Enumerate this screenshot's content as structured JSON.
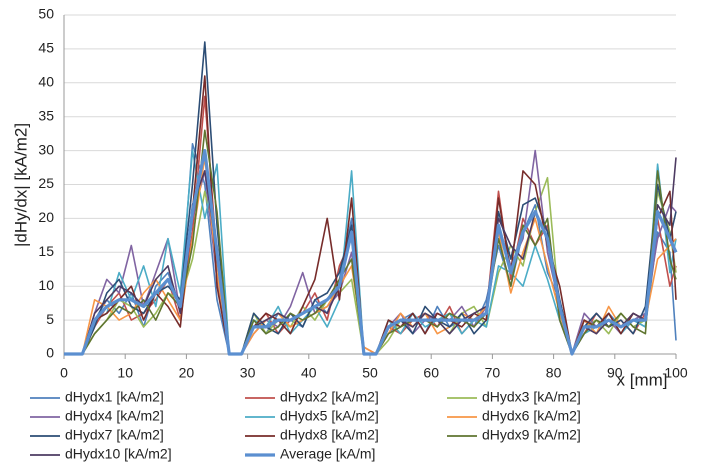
{
  "chart_data": {
    "type": "line",
    "x_label": "x [mm]",
    "y_label": "|dHy/dx|  [kA/m2]",
    "x": [
      0,
      1,
      3,
      5,
      7,
      9,
      11,
      13,
      15,
      17,
      19,
      21,
      23,
      25,
      27,
      29,
      31,
      33,
      35,
      37,
      39,
      41,
      43,
      45,
      47,
      49,
      51,
      53,
      55,
      57,
      59,
      61,
      63,
      65,
      67,
      69,
      71,
      73,
      75,
      77,
      79,
      81,
      83,
      85,
      87,
      89,
      91,
      93,
      95,
      97,
      99,
      100
    ],
    "xlim": [
      0,
      100
    ],
    "xticks": [
      0,
      10,
      20,
      30,
      40,
      50,
      60,
      70,
      80,
      90,
      100
    ],
    "ylim": [
      0,
      50
    ],
    "yticks": [
      0,
      5,
      10,
      15,
      20,
      25,
      30,
      35,
      40,
      45,
      50
    ],
    "grid": true,
    "legend": "bottom",
    "series": [
      {
        "name": "dHydx1 [kA/m2]",
        "color": "#4f81bd",
        "values": [
          0,
          0,
          0,
          5,
          8,
          6,
          9,
          4,
          10,
          12,
          7,
          31,
          25,
          8,
          0,
          0,
          5,
          3,
          6,
          5,
          4,
          8,
          6,
          11,
          20,
          0,
          0,
          3,
          5,
          6,
          3,
          7,
          4,
          5,
          4,
          8,
          16,
          10,
          18,
          22,
          12,
          8,
          0,
          5,
          3,
          6,
          4,
          5,
          4,
          18,
          15,
          2
        ]
      },
      {
        "name": "dHydx2 [kA/m2]",
        "color": "#c0504d",
        "values": [
          0,
          0,
          0,
          4,
          7,
          9,
          5,
          6,
          8,
          11,
          5,
          18,
          38,
          14,
          0,
          0,
          4,
          6,
          3,
          5,
          6,
          9,
          5,
          13,
          17,
          1,
          0,
          4,
          3,
          5,
          6,
          4,
          7,
          3,
          5,
          6,
          24,
          11,
          20,
          16,
          19,
          5,
          0,
          3,
          6,
          4,
          5,
          3,
          6,
          20,
          10,
          13
        ]
      },
      {
        "name": "dHydx3 [kA/m2]",
        "color": "#9bbb59",
        "values": [
          0,
          0,
          0,
          3,
          5,
          8,
          7,
          4,
          6,
          9,
          8,
          14,
          24,
          16,
          0,
          0,
          6,
          3,
          5,
          4,
          7,
          5,
          8,
          9,
          11,
          0,
          0,
          2,
          5,
          4,
          6,
          5,
          3,
          6,
          7,
          4,
          12,
          16,
          13,
          21,
          26,
          6,
          0,
          4,
          5,
          3,
          6,
          4,
          5,
          24,
          18,
          12
        ]
      },
      {
        "name": "dHydx4 [kA/m2]",
        "color": "#8064a2",
        "values": [
          0,
          0,
          0,
          6,
          11,
          9,
          16,
          7,
          12,
          17,
          6,
          20,
          27,
          11,
          0,
          0,
          3,
          5,
          4,
          7,
          12,
          6,
          7,
          9,
          15,
          0,
          0,
          4,
          6,
          3,
          5,
          6,
          5,
          7,
          4,
          7,
          19,
          13,
          17,
          30,
          15,
          7,
          0,
          6,
          4,
          5,
          3,
          5,
          6,
          17,
          22,
          21
        ]
      },
      {
        "name": "dHydx5 [kA/m2]",
        "color": "#4bacc6",
        "values": [
          0,
          0,
          0,
          5,
          6,
          12,
          8,
          13,
          7,
          17,
          9,
          30,
          20,
          28,
          0,
          0,
          5,
          4,
          7,
          3,
          5,
          7,
          4,
          8,
          27,
          0,
          0,
          5,
          3,
          6,
          4,
          5,
          6,
          3,
          5,
          4,
          13,
          12,
          10,
          16,
          11,
          5,
          0,
          3,
          4,
          6,
          3,
          5,
          4,
          28,
          12,
          17
        ]
      },
      {
        "name": "dHydx6 [kA/m2]",
        "color": "#f79646",
        "values": [
          0,
          0,
          0,
          8,
          7,
          5,
          6,
          9,
          11,
          8,
          5,
          17,
          29,
          12,
          0,
          0,
          3,
          5,
          6,
          4,
          5,
          6,
          7,
          10,
          13,
          1,
          0,
          3,
          6,
          4,
          6,
          3,
          4,
          6,
          5,
          7,
          18,
          9,
          15,
          20,
          13,
          6,
          0,
          5,
          3,
          7,
          4,
          6,
          5,
          14,
          16,
          17
        ]
      },
      {
        "name": "dHydx7 [kA/m2]",
        "color": "#2c4d75",
        "values": [
          0,
          0,
          0,
          4,
          9,
          11,
          7,
          6,
          9,
          10,
          8,
          25,
          46,
          19,
          0,
          0,
          6,
          4,
          3,
          6,
          4,
          8,
          9,
          12,
          19,
          0,
          0,
          4,
          5,
          3,
          7,
          5,
          4,
          6,
          3,
          5,
          21,
          14,
          22,
          23,
          18,
          8,
          0,
          4,
          6,
          4,
          5,
          3,
          7,
          25,
          17,
          21
        ]
      },
      {
        "name": "dHydx8 [kA/m2]",
        "color": "#772c2a",
        "values": [
          0,
          0,
          0,
          5,
          6,
          8,
          10,
          5,
          9,
          7,
          4,
          21,
          41,
          10,
          0,
          0,
          4,
          6,
          5,
          3,
          7,
          11,
          20,
          8,
          23,
          0,
          0,
          5,
          4,
          6,
          3,
          6,
          5,
          4,
          6,
          5,
          23,
          12,
          27,
          25,
          16,
          10,
          0,
          5,
          4,
          6,
          3,
          6,
          5,
          20,
          24,
          8
        ]
      },
      {
        "name": "dHydx9 [kA/m2]",
        "color": "#5f7530",
        "values": [
          0,
          0,
          0,
          3,
          5,
          7,
          6,
          8,
          5,
          9,
          7,
          16,
          33,
          21,
          0,
          0,
          5,
          3,
          4,
          6,
          5,
          6,
          8,
          11,
          14,
          0,
          0,
          3,
          4,
          5,
          5,
          4,
          6,
          5,
          4,
          6,
          17,
          10,
          19,
          16,
          20,
          5,
          0,
          3,
          5,
          4,
          6,
          4,
          3,
          27,
          14,
          11
        ]
      },
      {
        "name": "dHydx10 [kA/m2]",
        "color": "#4d3b62",
        "values": [
          0,
          0,
          0,
          6,
          8,
          10,
          9,
          7,
          11,
          13,
          6,
          22,
          27,
          15,
          0,
          0,
          4,
          5,
          6,
          5,
          6,
          7,
          6,
          10,
          18,
          0,
          0,
          4,
          5,
          4,
          6,
          5,
          3,
          5,
          6,
          7,
          20,
          16,
          14,
          21,
          17,
          7,
          0,
          4,
          3,
          5,
          4,
          6,
          5,
          22,
          19,
          29
        ]
      },
      {
        "name": "Average [kA/m]",
        "color": "#5b8fd0",
        "values": [
          0,
          0,
          0,
          5,
          7,
          8,
          8,
          7,
          9,
          11,
          7,
          21,
          30,
          15,
          0,
          0,
          4,
          4,
          5,
          5,
          6,
          7,
          8,
          10,
          18,
          0,
          0,
          4,
          5,
          5,
          5,
          5,
          5,
          5,
          5,
          6,
          19,
          12,
          18,
          21,
          17,
          7,
          0,
          4,
          4,
          5,
          4,
          5,
          5,
          21,
          17,
          15
        ]
      }
    ]
  }
}
